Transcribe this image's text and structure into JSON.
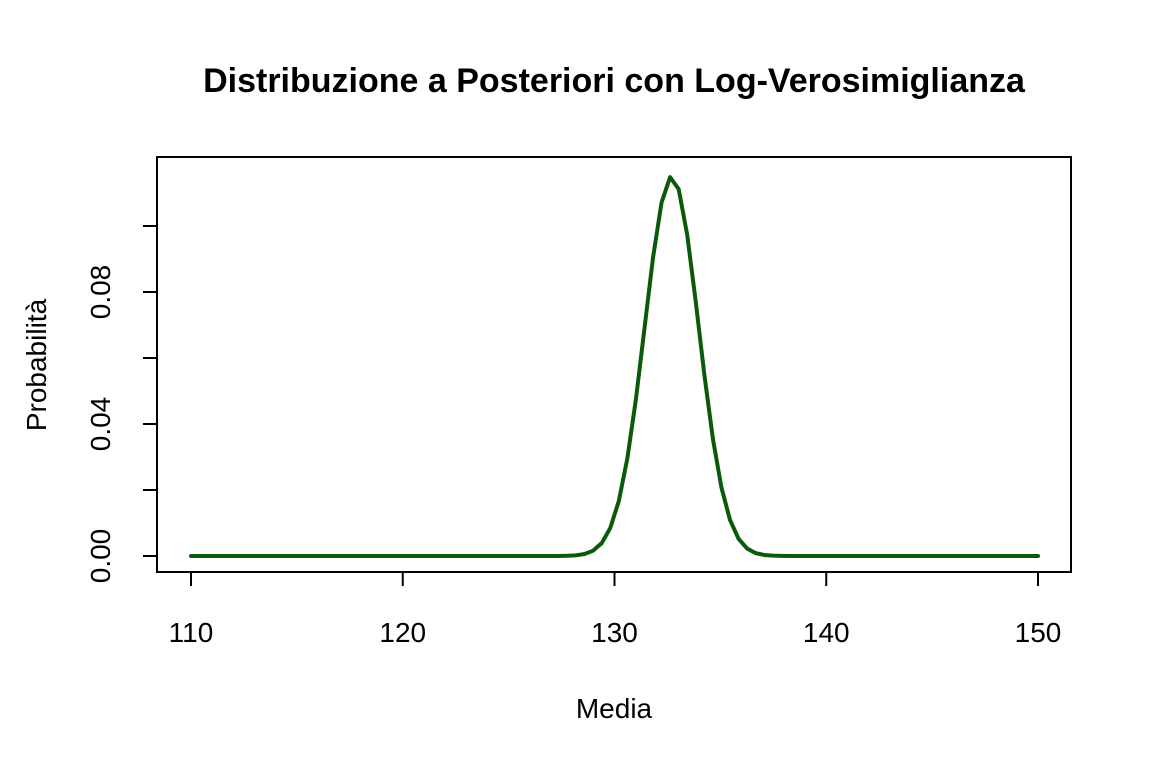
{
  "chart_data": {
    "type": "line",
    "title": "Distribuzione a Posteriori con Log-Verosimiglianza",
    "xlabel": "Media",
    "ylabel": "Probabilità",
    "xlim": [
      110,
      150
    ],
    "ylim": [
      0,
      0.115
    ],
    "x_ticks": [
      110,
      120,
      130,
      140,
      150
    ],
    "x_tick_labels": [
      "110",
      "120",
      "130",
      "140",
      "150"
    ],
    "y_ticks": [
      0.0,
      0.02,
      0.04,
      0.06,
      0.08,
      0.1
    ],
    "y_tick_labels": [
      "0.00",
      "",
      "0.04",
      "",
      "0.08",
      ""
    ],
    "grid": false,
    "legend": "none",
    "series": [
      {
        "color": "#0b5a0b",
        "x_start": 110,
        "x_end": 150,
        "n_points": 100,
        "mean": 132.7,
        "sd": 1.27,
        "peak": 0.115
      }
    ]
  }
}
